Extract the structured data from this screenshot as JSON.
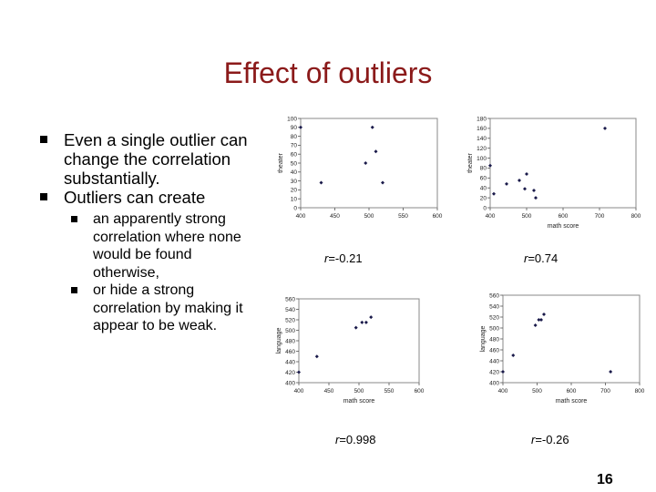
{
  "title": "Effect of outliers",
  "bullets": [
    "Even a single outlier can change the correlation substantially.",
    "Outliers can create"
  ],
  "sub_bullets": [
    "an apparently strong correlation where none would be found otherwise,",
    "or hide a strong correlation by making it appear to be weak."
  ],
  "page_number": "16",
  "chart_data": [
    {
      "type": "scatter",
      "xlabel": "",
      "ylabel": "theater",
      "xlim": [
        400,
        600
      ],
      "ylim": [
        0,
        100
      ],
      "xticks": [
        "400",
        "450",
        "500",
        "550",
        "600"
      ],
      "yticks": [
        "0",
        "10",
        "20",
        "30",
        "40",
        "50",
        "60",
        "70",
        "80",
        "90",
        "100"
      ],
      "points": [
        [
          400,
          90
        ],
        [
          430,
          28
        ],
        [
          495,
          50
        ],
        [
          505,
          90
        ],
        [
          510,
          63
        ],
        [
          520,
          28
        ]
      ],
      "r_prefix": "r",
      "r_value": "=-0.21"
    },
    {
      "type": "scatter",
      "xlabel": "math score",
      "ylabel": "theater",
      "xlim": [
        400,
        800
      ],
      "ylim": [
        0,
        180
      ],
      "xticks": [
        "400",
        "500",
        "600",
        "700",
        "800"
      ],
      "yticks": [
        "0",
        "20",
        "40",
        "60",
        "80",
        "100",
        "120",
        "140",
        "160",
        "180"
      ],
      "points": [
        [
          400,
          85
        ],
        [
          410,
          28
        ],
        [
          445,
          48
        ],
        [
          480,
          55
        ],
        [
          495,
          38
        ],
        [
          500,
          68
        ],
        [
          525,
          20
        ],
        [
          520,
          35
        ],
        [
          715,
          160
        ]
      ],
      "r_prefix": "r",
      "r_value": "=0.74"
    },
    {
      "type": "scatter",
      "xlabel": "math score",
      "ylabel": "language",
      "xlim": [
        400,
        600
      ],
      "ylim": [
        400,
        560
      ],
      "xticks": [
        "400",
        "450",
        "500",
        "550",
        "600"
      ],
      "yticks": [
        "400",
        "420",
        "440",
        "460",
        "480",
        "500",
        "520",
        "540",
        "560"
      ],
      "points": [
        [
          400,
          420
        ],
        [
          430,
          450
        ],
        [
          495,
          505
        ],
        [
          505,
          515
        ],
        [
          512,
          515
        ],
        [
          520,
          525
        ]
      ],
      "r_prefix": "r",
      "r_value": "=0.998"
    },
    {
      "type": "scatter",
      "xlabel": "math score",
      "ylabel": "language",
      "xlim": [
        400,
        800
      ],
      "ylim": [
        400,
        560
      ],
      "xticks": [
        "400",
        "500",
        "600",
        "700",
        "800"
      ],
      "yticks": [
        "400",
        "420",
        "440",
        "460",
        "480",
        "500",
        "520",
        "540",
        "560"
      ],
      "points": [
        [
          400,
          420
        ],
        [
          430,
          450
        ],
        [
          495,
          505
        ],
        [
          505,
          515
        ],
        [
          512,
          515
        ],
        [
          520,
          525
        ],
        [
          715,
          420
        ]
      ],
      "r_prefix": "r",
      "r_value": "=-0.26"
    }
  ]
}
